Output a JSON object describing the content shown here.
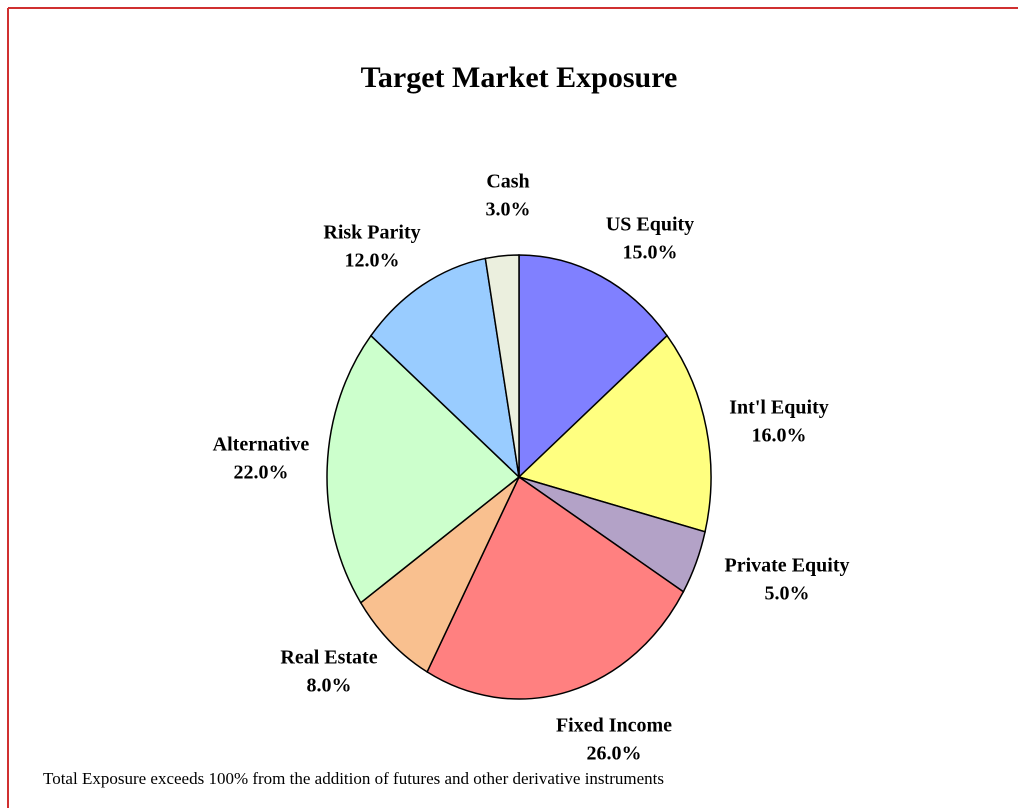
{
  "chart_data": {
    "type": "pie",
    "title": "Target Market Exposure",
    "categories": [
      "US Equity",
      "Int'l Equity",
      "Private Equity",
      "Fixed Income",
      "Real Estate",
      "Alternative",
      "Risk Parity",
      "Cash"
    ],
    "values": [
      15,
      16,
      5,
      26,
      8,
      22,
      12,
      3
    ],
    "value_labels": [
      "15.0%",
      "16.0%",
      "5.0%",
      "26.0%",
      "8.0%",
      "22.0%",
      "12.0%",
      "3.0%"
    ],
    "colors": [
      "#8080ff",
      "#ffff80",
      "#b3a2c7",
      "#ff8080",
      "#f9c08f",
      "#ccffcc",
      "#99ccff",
      "#ebefde"
    ],
    "note": "Total Exposure exceeds 100% from the addition of futures and other derivative instruments"
  }
}
